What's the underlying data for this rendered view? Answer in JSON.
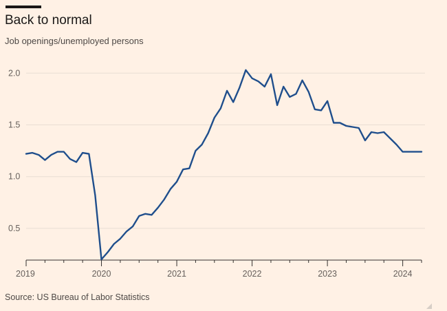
{
  "header": {
    "title": "Back to normal",
    "subtitle": "Job openings/unemployed persons"
  },
  "footer": {
    "source": "Source: US Bureau of Labor Statistics"
  },
  "colors": {
    "background": "#FFF1E5",
    "line": "#1F4E8C",
    "grid": "#E8DDD3",
    "axis": "#33302E"
  },
  "chart_data": {
    "type": "line",
    "title": "Back to normal",
    "subtitle": "Job openings/unemployed persons",
    "xlabel": "",
    "ylabel": "",
    "ylim": [
      0.2,
      2.15
    ],
    "xlim": [
      "2019-01",
      "2024-04"
    ],
    "grid": true,
    "legend": "none",
    "y_ticks": [
      "0.5",
      "1.0",
      "1.5",
      "2.0"
    ],
    "x_ticks": [
      "2019",
      "2020",
      "2021",
      "2022",
      "2023",
      "2024"
    ],
    "series": [
      {
        "x": [
          "2019-01",
          "2019-02",
          "2019-03",
          "2019-04",
          "2019-05",
          "2019-06",
          "2019-07",
          "2019-08",
          "2019-09",
          "2019-10",
          "2019-11",
          "2019-12",
          "2020-01",
          "2020-02",
          "2020-03",
          "2020-04",
          "2020-05",
          "2020-06",
          "2020-07",
          "2020-08",
          "2020-09",
          "2020-10",
          "2020-11",
          "2020-12",
          "2021-01",
          "2021-02",
          "2021-03",
          "2021-04",
          "2021-05",
          "2021-06",
          "2021-07",
          "2021-08",
          "2021-09",
          "2021-10",
          "2021-11",
          "2021-12",
          "2022-01",
          "2022-02",
          "2022-03",
          "2022-04",
          "2022-05",
          "2022-06",
          "2022-07",
          "2022-08",
          "2022-09",
          "2022-10",
          "2022-11",
          "2022-12",
          "2023-01",
          "2023-02",
          "2023-03",
          "2023-04",
          "2023-05",
          "2023-06",
          "2023-07",
          "2023-08",
          "2023-09",
          "2023-10",
          "2023-11",
          "2023-12",
          "2024-01",
          "2024-02",
          "2024-03",
          "2024-04"
        ],
        "values": [
          1.22,
          1.23,
          1.21,
          1.16,
          1.21,
          1.24,
          1.24,
          1.17,
          1.14,
          1.23,
          1.22,
          0.82,
          0.2,
          0.27,
          0.35,
          0.4,
          0.47,
          0.52,
          0.62,
          0.64,
          0.63,
          0.7,
          0.78,
          0.88,
          0.95,
          1.07,
          1.08,
          1.25,
          1.31,
          1.42,
          1.57,
          1.66,
          1.83,
          1.72,
          1.86,
          2.03,
          1.95,
          1.92,
          1.87,
          1.99,
          1.69,
          1.87,
          1.77,
          1.8,
          1.93,
          1.82,
          1.65,
          1.64,
          1.73,
          1.52,
          1.52,
          1.49,
          1.48,
          1.47,
          1.35,
          1.43,
          1.42,
          1.43,
          1.37,
          1.31,
          1.24,
          1.24,
          1.24,
          1.24
        ]
      }
    ]
  }
}
